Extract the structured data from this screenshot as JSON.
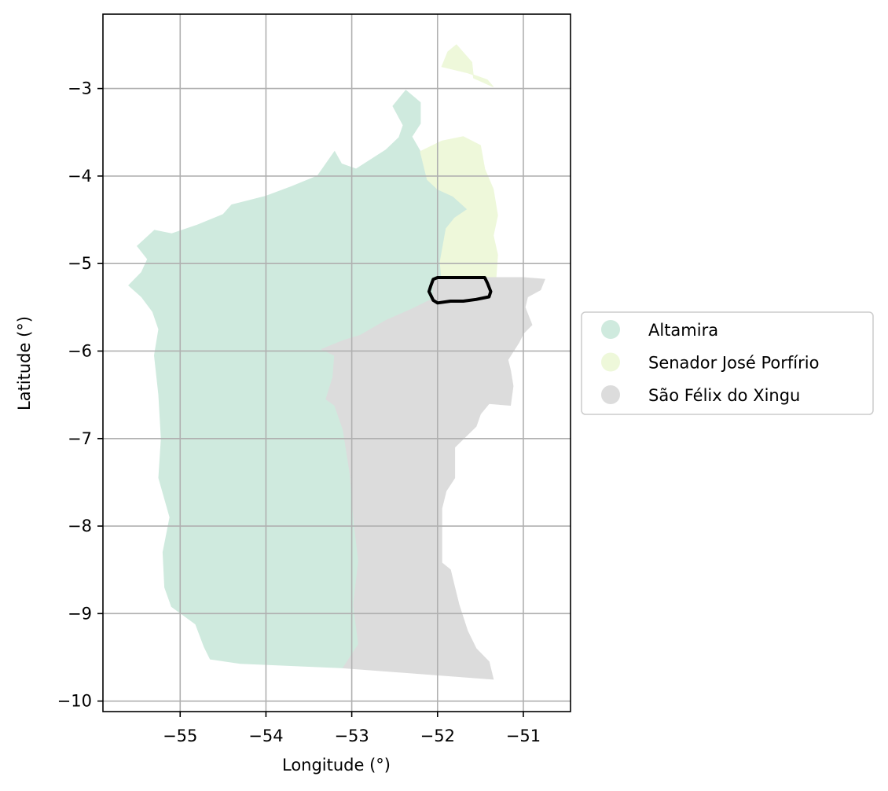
{
  "map": {
    "xlabel": "Longitude (°)",
    "ylabel": "Latitude (°)",
    "xlim": [
      -55.9,
      -50.45
    ],
    "ylim": [
      -10.12,
      -2.15
    ],
    "x_ticks": [
      -55,
      -54,
      -53,
      -52,
      -51
    ],
    "y_ticks": [
      -3,
      -4,
      -5,
      -6,
      -7,
      -8,
      -9,
      -10
    ],
    "x_tick_labels": [
      "−55",
      "−54",
      "−53",
      "−52",
      "−51"
    ],
    "y_tick_labels": [
      "−3",
      "−4",
      "−5",
      "−6",
      "−7",
      "−8",
      "−9",
      "−10"
    ],
    "grid": true,
    "legend_position": "right"
  },
  "regions": [
    {
      "name": "Altamira",
      "color": "#cfeade",
      "outline": [
        [
          -55.3,
          -4.62
        ],
        [
          -55.1,
          -4.66
        ],
        [
          -54.8,
          -4.56
        ],
        [
          -54.5,
          -4.44
        ],
        [
          -54.4,
          -4.33
        ],
        [
          -54.0,
          -4.23
        ],
        [
          -53.7,
          -4.12
        ],
        [
          -53.4,
          -4.0
        ],
        [
          -53.2,
          -3.72
        ],
        [
          -53.12,
          -3.86
        ],
        [
          -52.95,
          -3.92
        ],
        [
          -52.6,
          -3.7
        ],
        [
          -52.45,
          -3.56
        ],
        [
          -52.4,
          -3.42
        ],
        [
          -52.52,
          -3.2
        ],
        [
          -52.37,
          -3.02
        ],
        [
          -52.2,
          -3.16
        ],
        [
          -52.2,
          -3.4
        ],
        [
          -52.3,
          -3.55
        ],
        [
          -52.2,
          -3.72
        ],
        [
          -52.12,
          -4.04
        ],
        [
          -52.0,
          -4.15
        ],
        [
          -51.82,
          -4.23
        ],
        [
          -51.65,
          -4.38
        ],
        [
          -51.8,
          -4.48
        ],
        [
          -51.9,
          -4.6
        ],
        [
          -51.97,
          -4.98
        ],
        [
          -51.95,
          -5.2
        ],
        [
          -52.05,
          -5.4
        ],
        [
          -52.3,
          -5.52
        ],
        [
          -52.6,
          -5.65
        ],
        [
          -52.9,
          -5.82
        ],
        [
          -53.1,
          -5.98
        ],
        [
          -53.15,
          -6.3
        ],
        [
          -53.15,
          -6.62
        ],
        [
          -53.1,
          -6.9
        ],
        [
          -53.02,
          -7.4
        ],
        [
          -52.98,
          -7.9
        ],
        [
          -52.92,
          -8.4
        ],
        [
          -52.98,
          -8.9
        ],
        [
          -52.92,
          -9.35
        ],
        [
          -53.1,
          -9.62
        ],
        [
          -54.3,
          -9.57
        ],
        [
          -54.65,
          -9.52
        ],
        [
          -54.72,
          -9.38
        ],
        [
          -54.82,
          -9.12
        ],
        [
          -55.1,
          -8.92
        ],
        [
          -55.18,
          -8.7
        ],
        [
          -55.2,
          -8.3
        ],
        [
          -55.12,
          -7.9
        ],
        [
          -55.25,
          -7.45
        ],
        [
          -55.22,
          -7.0
        ],
        [
          -55.25,
          -6.5
        ],
        [
          -55.3,
          -6.05
        ],
        [
          -55.25,
          -5.75
        ],
        [
          -55.32,
          -5.55
        ],
        [
          -55.45,
          -5.38
        ],
        [
          -55.6,
          -5.25
        ],
        [
          -55.45,
          -5.1
        ],
        [
          -55.38,
          -4.95
        ],
        [
          -55.5,
          -4.8
        ]
      ]
    },
    {
      "name": "Senador José Porfírio",
      "color": "#eef8da",
      "outline": [
        [
          [
            -51.95,
            -2.75
          ],
          [
            -51.88,
            -2.58
          ],
          [
            -51.78,
            -2.5
          ],
          [
            -51.6,
            -2.7
          ],
          [
            -51.58,
            -2.88
          ],
          [
            -51.35,
            -2.98
          ],
          [
            -51.42,
            -2.9
          ],
          [
            -51.65,
            -2.82
          ]
        ],
        [
          [
            -52.2,
            -3.72
          ],
          [
            -51.95,
            -3.6
          ],
          [
            -51.7,
            -3.55
          ],
          [
            -51.5,
            -3.65
          ],
          [
            -51.45,
            -3.92
          ],
          [
            -51.35,
            -4.15
          ],
          [
            -51.3,
            -4.45
          ],
          [
            -51.35,
            -4.68
          ],
          [
            -51.3,
            -4.9
          ],
          [
            -51.32,
            -5.18
          ],
          [
            -51.62,
            -5.18
          ],
          [
            -51.95,
            -5.2
          ],
          [
            -51.97,
            -4.98
          ],
          [
            -51.9,
            -4.6
          ],
          [
            -51.8,
            -4.48
          ],
          [
            -51.65,
            -4.38
          ],
          [
            -51.82,
            -4.23
          ],
          [
            -52.0,
            -4.15
          ],
          [
            -52.12,
            -4.04
          ]
        ]
      ]
    },
    {
      "name": "São Félix do Xingu",
      "color": "#dcdcdc",
      "outline": [
        [
          -52.05,
          -5.16
        ],
        [
          -51.4,
          -5.16
        ],
        [
          -51.0,
          -5.16
        ],
        [
          -50.75,
          -5.18
        ],
        [
          -50.8,
          -5.3
        ],
        [
          -50.95,
          -5.38
        ],
        [
          -50.98,
          -5.5
        ],
        [
          -50.9,
          -5.7
        ],
        [
          -51.0,
          -5.8
        ],
        [
          -51.05,
          -5.9
        ],
        [
          -51.18,
          -6.1
        ],
        [
          -51.15,
          -6.22
        ],
        [
          -51.12,
          -6.4
        ],
        [
          -51.15,
          -6.62
        ],
        [
          -51.4,
          -6.6
        ],
        [
          -51.5,
          -6.72
        ],
        [
          -51.55,
          -6.86
        ],
        [
          -51.8,
          -7.1
        ],
        [
          -51.8,
          -7.45
        ],
        [
          -51.9,
          -7.6
        ],
        [
          -51.95,
          -7.8
        ],
        [
          -51.95,
          -8.2
        ],
        [
          -51.95,
          -8.42
        ],
        [
          -51.85,
          -8.5
        ],
        [
          -51.8,
          -8.7
        ],
        [
          -51.75,
          -8.9
        ],
        [
          -51.65,
          -9.2
        ],
        [
          -51.55,
          -9.4
        ],
        [
          -51.4,
          -9.55
        ],
        [
          -51.35,
          -9.75
        ],
        [
          -53.1,
          -9.62
        ],
        [
          -52.92,
          -9.35
        ],
        [
          -52.98,
          -8.9
        ],
        [
          -52.92,
          -8.4
        ],
        [
          -52.98,
          -7.9
        ],
        [
          -53.02,
          -7.4
        ],
        [
          -53.1,
          -6.9
        ],
        [
          -53.2,
          -6.62
        ],
        [
          -53.3,
          -6.55
        ],
        [
          -53.22,
          -6.3
        ],
        [
          -53.2,
          -6.05
        ],
        [
          -53.35,
          -5.98
        ],
        [
          -53.1,
          -5.88
        ],
        [
          -52.9,
          -5.82
        ],
        [
          -52.6,
          -5.65
        ],
        [
          -52.3,
          -5.52
        ],
        [
          -52.05,
          -5.4
        ]
      ]
    }
  ],
  "highlight_outline": [
    [
      -52.0,
      -5.16
    ],
    [
      -51.45,
      -5.16
    ],
    [
      -51.42,
      -5.22
    ],
    [
      -51.38,
      -5.32
    ],
    [
      -51.4,
      -5.38
    ],
    [
      -51.55,
      -5.41
    ],
    [
      -51.7,
      -5.43
    ],
    [
      -51.85,
      -5.43
    ],
    [
      -52.0,
      -5.45
    ],
    [
      -52.05,
      -5.42
    ],
    [
      -52.1,
      -5.32
    ],
    [
      -52.08,
      -5.26
    ],
    [
      -52.05,
      -5.18
    ]
  ],
  "legend": {
    "items": [
      {
        "label": "Altamira",
        "color": "#cfeade"
      },
      {
        "label": "Senador José Porfírio",
        "color": "#eef8da"
      },
      {
        "label": "São Félix do Xingu",
        "color": "#dcdcdc"
      }
    ]
  }
}
